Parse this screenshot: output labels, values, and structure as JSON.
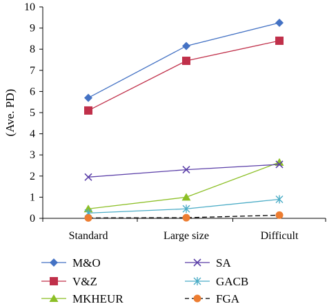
{
  "chart_data": {
    "type": "line",
    "title": "",
    "xlabel": "",
    "ylabel": "(Ave. PD)",
    "categories": [
      "Standard",
      "Large size",
      "Difficult"
    ],
    "ylim": [
      0,
      10
    ],
    "yticks": [
      0,
      1,
      2,
      3,
      4,
      5,
      6,
      7,
      8,
      9,
      10
    ],
    "grid": false,
    "legend_position": "bottom",
    "series": [
      {
        "name": "M&O",
        "values": [
          5.7,
          8.15,
          9.25
        ],
        "color": "#4472C4",
        "marker": "diamond",
        "dash": false
      },
      {
        "name": "V&Z",
        "values": [
          5.1,
          7.45,
          8.4
        ],
        "color": "#C0304A",
        "marker": "square",
        "dash": false
      },
      {
        "name": "MKHEUR",
        "values": [
          0.45,
          1.0,
          2.65
        ],
        "color": "#8CBF26",
        "marker": "triangle",
        "dash": false
      },
      {
        "name": "SA",
        "values": [
          1.95,
          2.3,
          2.55
        ],
        "color": "#5B3FA8",
        "marker": "x",
        "dash": false
      },
      {
        "name": "GACB",
        "values": [
          0.25,
          0.45,
          0.9
        ],
        "color": "#4BACC6",
        "marker": "star",
        "dash": false
      },
      {
        "name": "FGA",
        "values": [
          0.02,
          0.03,
          0.15
        ],
        "color": "#ED7D31",
        "marker": "circle",
        "dash": true
      }
    ]
  }
}
